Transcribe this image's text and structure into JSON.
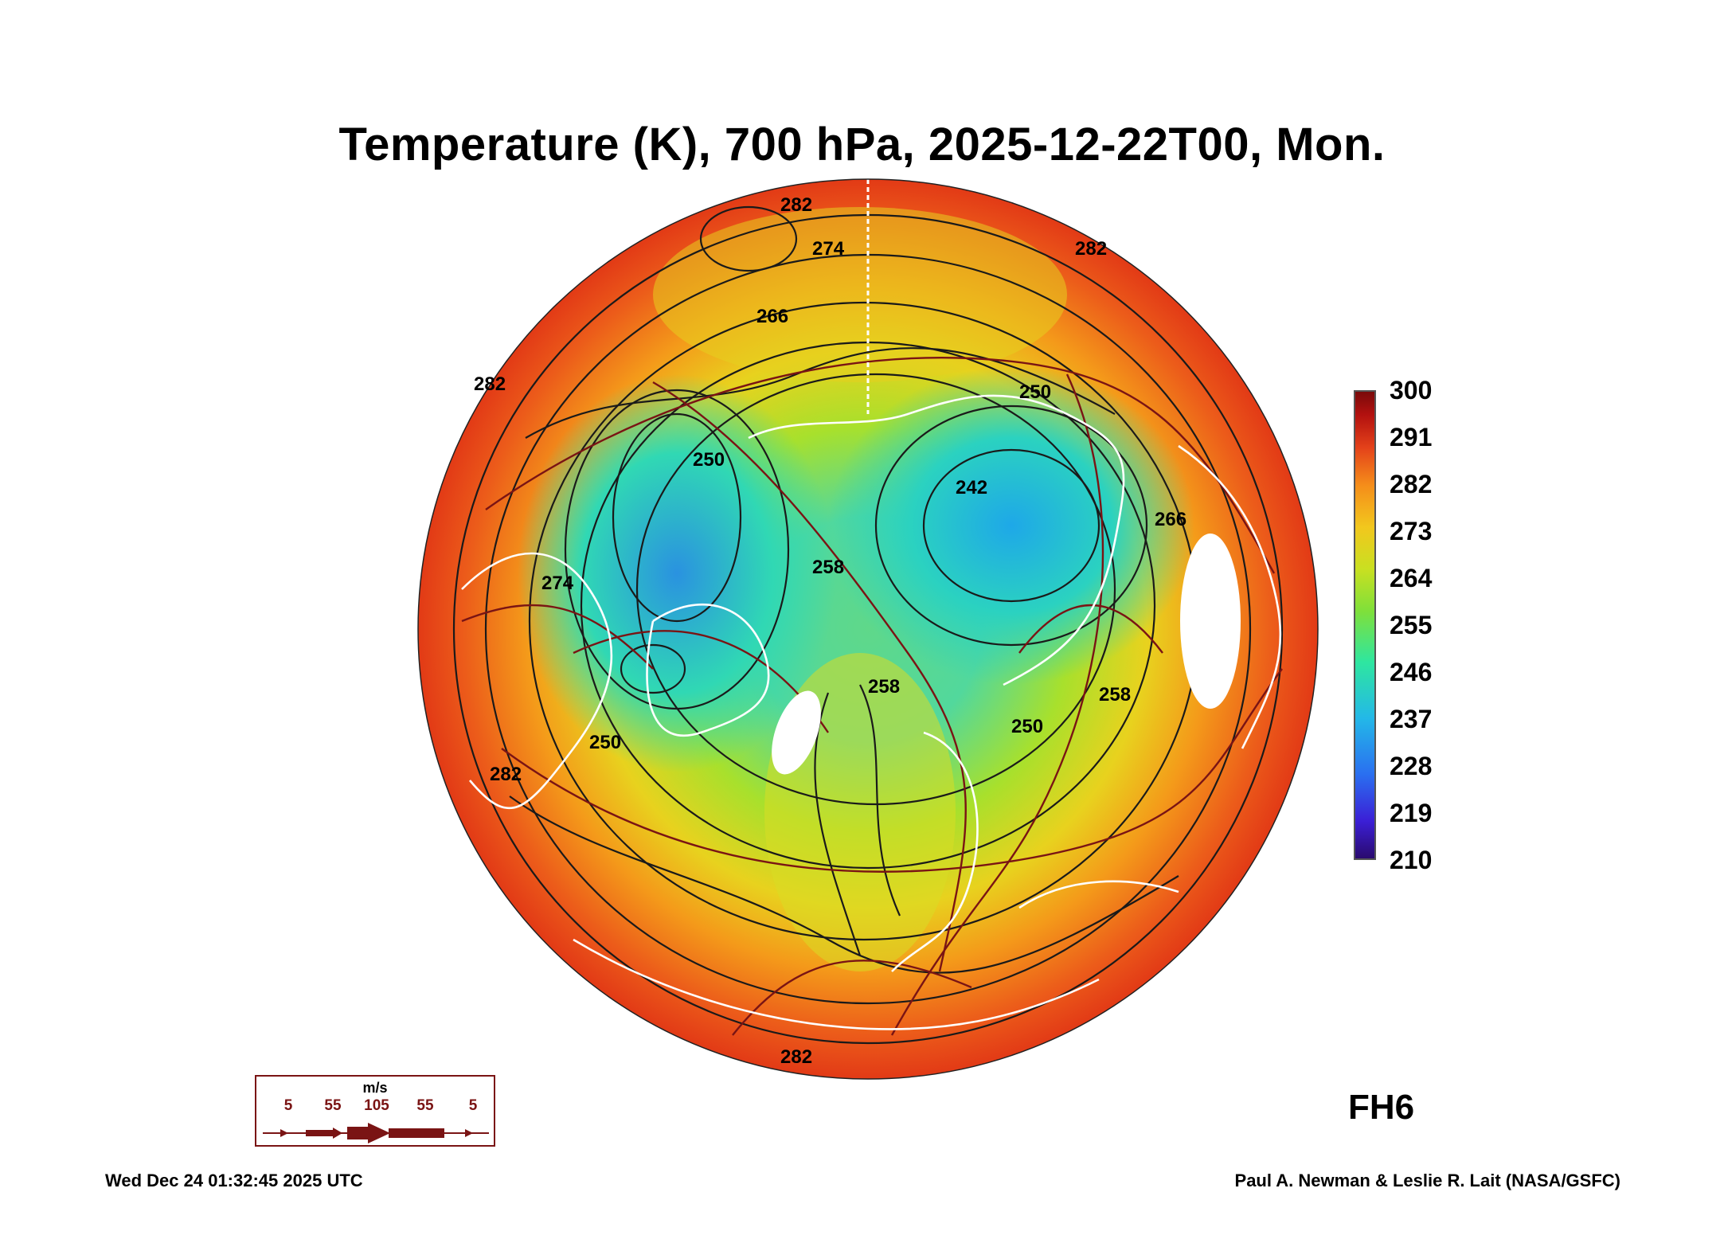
{
  "title": "Temperature (K), 700 hPa, 2025-12-22T00, Mon.",
  "colorbar": {
    "labels": [
      "300",
      "291",
      "282",
      "273",
      "264",
      "255",
      "246",
      "237",
      "228",
      "219",
      "210"
    ]
  },
  "contour_labels": [
    "282",
    "274",
    "266",
    "258",
    "250",
    "242",
    "250",
    "258",
    "266",
    "282",
    "250",
    "282",
    "258",
    "250",
    "282",
    "282",
    "274"
  ],
  "wind_legend": {
    "unit": "m/s",
    "values": [
      "5",
      "55",
      "105",
      "55",
      "5"
    ]
  },
  "forecast_hour": "FH6",
  "footer": {
    "timestamp": "Wed Dec 24 01:32:45 2025 UTC",
    "credit": "Paul A. Newman & Leslie R. Lait (NASA/GSFC)"
  },
  "colors": {
    "wind_vector": "#7a1414",
    "coastline": "#ffffff",
    "contour": "#1a1a1a"
  }
}
